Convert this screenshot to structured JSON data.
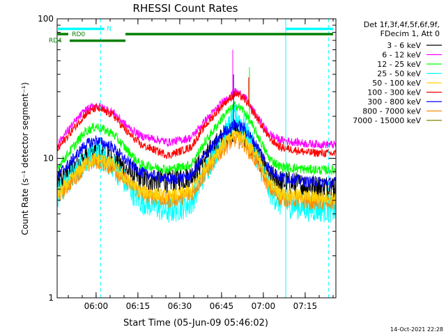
{
  "chart_data": {
    "type": "line",
    "title": "RHESSI Count Rates",
    "xlabel": "Start Time (05-Jun-09 05:46:02)",
    "ylabel": "Count Rate (s⁻¹ detector segment⁻¹)",
    "ylog": true,
    "ylim": [
      1,
      100
    ],
    "xlim_minutes": [
      0,
      100
    ],
    "x_ticks": [
      {
        "label": "06:00",
        "minutes": 13.97
      },
      {
        "label": "06:15",
        "minutes": 28.97
      },
      {
        "label": "06:30",
        "minutes": 43.97
      },
      {
        "label": "06:45",
        "minutes": 58.97
      },
      {
        "label": "07:00",
        "minutes": 73.97
      },
      {
        "label": "07:15",
        "minutes": 88.97
      }
    ],
    "y_ticks": [
      {
        "label": "1",
        "value": 1
      },
      {
        "label": "10",
        "value": 10
      },
      {
        "label": "100",
        "value": 100
      }
    ],
    "legend_header": [
      "Det 1f,3f,4f,5f,6f,9f,",
      "FDecim 1, Att 0"
    ],
    "legend_placement": "right",
    "series": [
      {
        "name": "3 - 6 keV",
        "color": "#000000",
        "points": [
          [
            0,
            6.5
          ],
          [
            5,
            8.2
          ],
          [
            10,
            10.2
          ],
          [
            13.97,
            11.0
          ],
          [
            20,
            9.8
          ],
          [
            25,
            8.2
          ],
          [
            30,
            7.1
          ],
          [
            40,
            6.9
          ],
          [
            48,
            7.4
          ],
          [
            53,
            10.0
          ],
          [
            60,
            14.5
          ],
          [
            64,
            16.0
          ],
          [
            67,
            14.5
          ],
          [
            72,
            10.5
          ],
          [
            76,
            7.4
          ],
          [
            80,
            6.8
          ],
          [
            90,
            6.3
          ],
          [
            100,
            6.2
          ]
        ]
      },
      {
        "name": "6 - 12 keV",
        "color": "#ff00ff",
        "points": [
          [
            0,
            12.5
          ],
          [
            5,
            17.0
          ],
          [
            10,
            22.0
          ],
          [
            13.97,
            24.0
          ],
          [
            20,
            21.5
          ],
          [
            25,
            17.0
          ],
          [
            30,
            14.5
          ],
          [
            40,
            13.0
          ],
          [
            48,
            14.0
          ],
          [
            53,
            18.5
          ],
          [
            60,
            26.0
          ],
          [
            64,
            30.0
          ],
          [
            67,
            28.0
          ],
          [
            72,
            19.5
          ],
          [
            76,
            15.0
          ],
          [
            80,
            13.5
          ],
          [
            90,
            12.7
          ],
          [
            100,
            12.5
          ]
        ]
      },
      {
        "name": "12 - 25 keV",
        "color": "#00ff00",
        "points": [
          [
            0,
            8.5
          ],
          [
            5,
            11.5
          ],
          [
            10,
            15.5
          ],
          [
            13.97,
            17.0
          ],
          [
            20,
            15.0
          ],
          [
            25,
            11.5
          ],
          [
            30,
            9.0
          ],
          [
            40,
            8.3
          ],
          [
            48,
            9.0
          ],
          [
            53,
            13.0
          ],
          [
            60,
            20.5
          ],
          [
            64,
            24.0
          ],
          [
            67,
            22.0
          ],
          [
            72,
            14.5
          ],
          [
            76,
            10.0
          ],
          [
            80,
            8.7
          ],
          [
            90,
            8.3
          ],
          [
            100,
            8.2
          ]
        ]
      },
      {
        "name": "25 - 50 keV",
        "color": "#00ffff",
        "points": [
          [
            0,
            5.5
          ],
          [
            5,
            7.3
          ],
          [
            10,
            9.7
          ],
          [
            13.97,
            10.8
          ],
          [
            20,
            9.0
          ],
          [
            25,
            6.5
          ],
          [
            30,
            5.0
          ],
          [
            40,
            4.2
          ],
          [
            48,
            4.8
          ],
          [
            53,
            8.0
          ],
          [
            60,
            14.5
          ],
          [
            64,
            20.0
          ],
          [
            67,
            17.0
          ],
          [
            72,
            10.0
          ],
          [
            76,
            6.0
          ],
          [
            80,
            4.8
          ],
          [
            90,
            4.4
          ],
          [
            100,
            4.3
          ]
        ]
      },
      {
        "name": "50 - 100 keV",
        "color": "#ffd200",
        "points": [
          [
            0,
            5.5
          ],
          [
            5,
            7.0
          ],
          [
            10,
            9.0
          ],
          [
            13.97,
            10.0
          ],
          [
            20,
            9.0
          ],
          [
            25,
            7.0
          ],
          [
            30,
            5.8
          ],
          [
            40,
            5.3
          ],
          [
            48,
            5.8
          ],
          [
            53,
            8.5
          ],
          [
            60,
            13.0
          ],
          [
            64,
            15.0
          ],
          [
            67,
            14.0
          ],
          [
            72,
            10.0
          ],
          [
            76,
            6.8
          ],
          [
            80,
            5.6
          ],
          [
            90,
            5.3
          ],
          [
            100,
            5.2
          ]
        ]
      },
      {
        "name": "100 - 300 keV",
        "color": "#ff0000",
        "points": [
          [
            0,
            11.5
          ],
          [
            5,
            15.5
          ],
          [
            10,
            20.5
          ],
          [
            13.97,
            23.0
          ],
          [
            20,
            20.5
          ],
          [
            25,
            15.5
          ],
          [
            30,
            12.5
          ],
          [
            40,
            10.5
          ],
          [
            48,
            12.0
          ],
          [
            53,
            17.0
          ],
          [
            60,
            25.0
          ],
          [
            64,
            29.0
          ],
          [
            67,
            27.0
          ],
          [
            72,
            19.0
          ],
          [
            76,
            14.0
          ],
          [
            80,
            12.0
          ],
          [
            90,
            11.0
          ],
          [
            100,
            10.8
          ]
        ]
      },
      {
        "name": "300 - 800 keV",
        "color": "#0000ff",
        "points": [
          [
            0,
            7.5
          ],
          [
            5,
            9.5
          ],
          [
            10,
            12.5
          ],
          [
            13.97,
            13.5
          ],
          [
            20,
            12.0
          ],
          [
            25,
            9.5
          ],
          [
            30,
            8.0
          ],
          [
            40,
            7.0
          ],
          [
            48,
            7.5
          ],
          [
            53,
            10.5
          ],
          [
            60,
            15.5
          ],
          [
            64,
            17.5
          ],
          [
            67,
            16.5
          ],
          [
            72,
            12.0
          ],
          [
            76,
            8.5
          ],
          [
            80,
            7.3
          ],
          [
            90,
            6.8
          ],
          [
            100,
            6.7
          ]
        ]
      },
      {
        "name": "800 - 7000 keV",
        "color": "#ff8c00",
        "points": [
          [
            0,
            5.2
          ],
          [
            5,
            6.8
          ],
          [
            10,
            8.8
          ],
          [
            13.97,
            9.6
          ],
          [
            20,
            8.6
          ],
          [
            25,
            6.8
          ],
          [
            30,
            5.6
          ],
          [
            40,
            5.0
          ],
          [
            48,
            5.5
          ],
          [
            53,
            7.8
          ],
          [
            60,
            12.0
          ],
          [
            64,
            13.8
          ],
          [
            67,
            12.8
          ],
          [
            72,
            9.2
          ],
          [
            76,
            6.2
          ],
          [
            80,
            5.2
          ],
          [
            90,
            4.9
          ],
          [
            100,
            4.8
          ]
        ]
      },
      {
        "name": "7000 - 15000 keV",
        "color": "#808000",
        "points": []
      }
    ],
    "spikes": [
      {
        "series": "6 - 12 keV",
        "minutes": 63.0,
        "value": 60
      },
      {
        "series": "300 - 800 keV",
        "minutes": 63.3,
        "value": 40
      },
      {
        "series": "12 - 25 keV",
        "minutes": 69.0,
        "value": 45
      },
      {
        "series": "100 - 300 keV",
        "minutes": 68.7,
        "value": 38
      }
    ],
    "vertical_lines": [
      {
        "minutes": 15.6,
        "style": "dashed",
        "color": "#00ffff"
      },
      {
        "minutes": 82.0,
        "style": "solid",
        "color": "#00ffff"
      },
      {
        "minutes": 97.4,
        "style": "dashed",
        "color": "#00ffff"
      }
    ],
    "flag_bars": [
      {
        "label": "N",
        "color": "#00ffff",
        "row": 1,
        "spans": [
          [
            0,
            16.9
          ],
          [
            82,
            99
          ]
        ]
      },
      {
        "label": "RD0",
        "color": "#008000",
        "row": 2,
        "spans": [
          [
            0,
            4
          ],
          [
            24.5,
            99
          ]
        ]
      },
      {
        "label": "RD4",
        "color": "#008000",
        "row": 3,
        "spans": [
          [
            4.5,
            24.5
          ]
        ]
      }
    ]
  },
  "footer": {
    "timestamp": "14-Oct-2021 22:28"
  }
}
